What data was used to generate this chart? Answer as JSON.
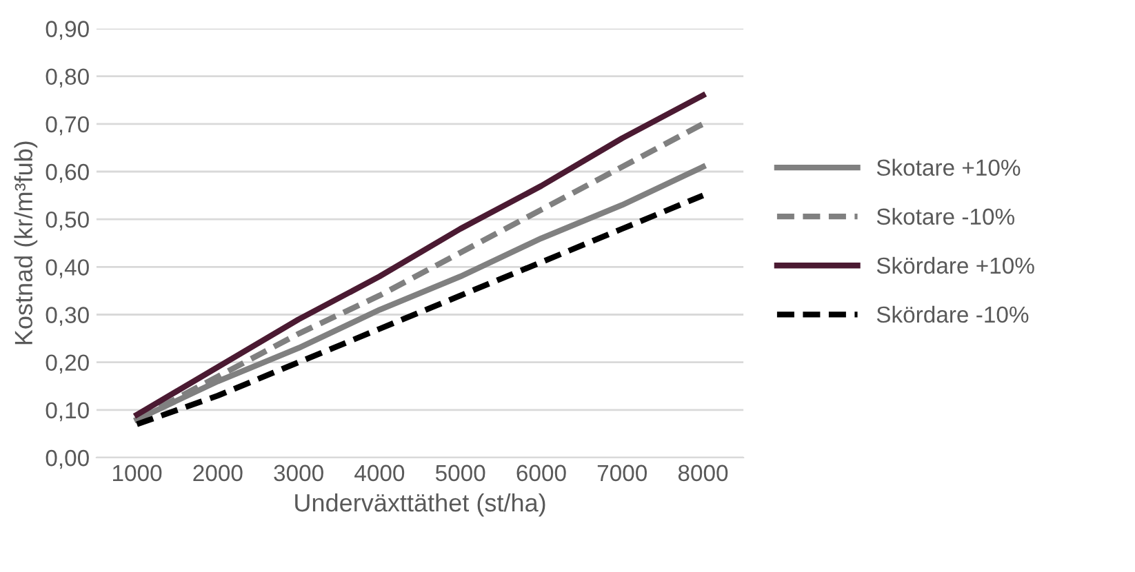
{
  "chart_data": {
    "type": "line",
    "xlabel": "Underväxttäthet (st/ha)",
    "ylabel": "Kostnad (kr/m³fub)",
    "categories": [
      "1000",
      "2000",
      "3000",
      "4000",
      "5000",
      "6000",
      "7000",
      "8000"
    ],
    "ylim": [
      0,
      0.9
    ],
    "yticks": [
      {
        "value": 0,
        "label": "0,00"
      },
      {
        "value": 0.1,
        "label": "0,10"
      },
      {
        "value": 0.2,
        "label": "0,20"
      },
      {
        "value": 0.3,
        "label": "0,30"
      },
      {
        "value": 0.4,
        "label": "0,40"
      },
      {
        "value": 0.5,
        "label": "0,50"
      },
      {
        "value": 0.6,
        "label": "0,60"
      },
      {
        "value": 0.7,
        "label": "0,70"
      },
      {
        "value": 0.8,
        "label": "0,80"
      },
      {
        "value": 0.9,
        "label": "0,90"
      }
    ],
    "grid": "y",
    "legend": "right",
    "marker": "none",
    "series": [
      {
        "name": "Skotare +10%",
        "color": "#808080",
        "line_style": "solid",
        "values": [
          0.08,
          0.16,
          0.23,
          0.31,
          0.38,
          0.46,
          0.53,
          0.61
        ]
      },
      {
        "name": "Skotare -10%",
        "color": "#808080",
        "line_style": "dashed",
        "values": [
          0.08,
          0.17,
          0.26,
          0.34,
          0.43,
          0.52,
          0.61,
          0.7
        ]
      },
      {
        "name": "Skördare +10%",
        "color": "#4b1a32",
        "line_style": "solid",
        "values": [
          0.09,
          0.19,
          0.29,
          0.38,
          0.48,
          0.57,
          0.67,
          0.76
        ]
      },
      {
        "name": "Skördare -10%",
        "color": "#000000",
        "line_style": "dashed",
        "values": [
          0.07,
          0.13,
          0.2,
          0.27,
          0.34,
          0.41,
          0.48,
          0.55
        ]
      }
    ]
  }
}
